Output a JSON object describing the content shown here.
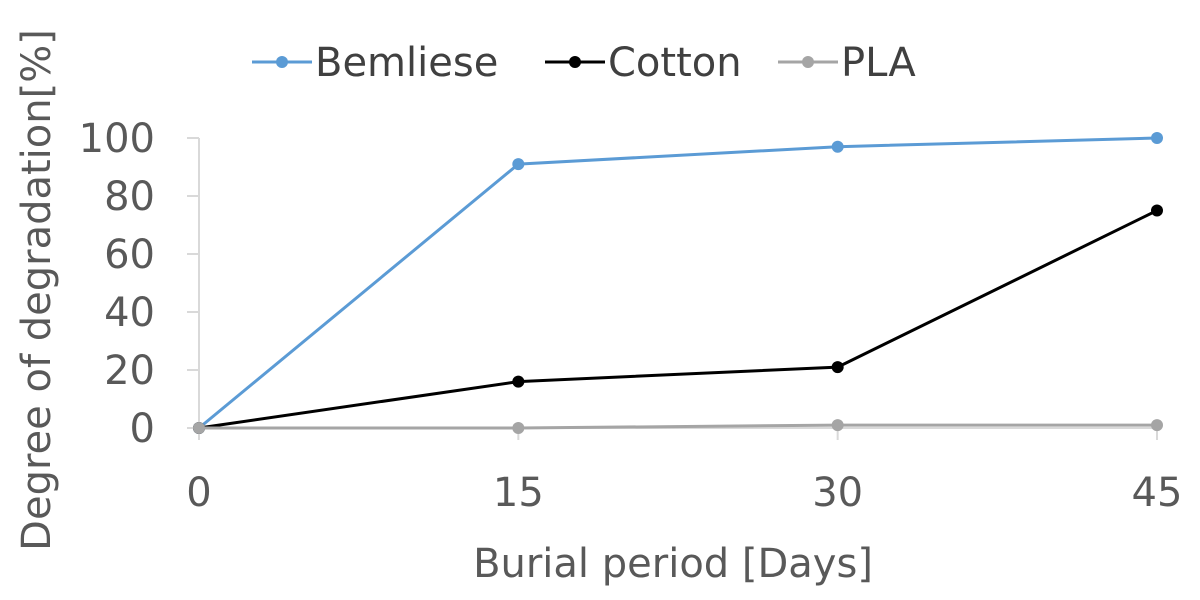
{
  "chart_data": {
    "type": "line",
    "x": [
      0,
      15,
      30,
      45
    ],
    "xlabel": "Burial period [Days]",
    "ylabel": "Degree of degradation[%]",
    "xlim": [
      0,
      45
    ],
    "ylim": [
      0,
      100
    ],
    "x_ticks": [
      "0",
      "15",
      "30",
      "45"
    ],
    "y_ticks": [
      "0",
      "20",
      "40",
      "60",
      "80",
      "100"
    ],
    "grid": false,
    "legend_position": "top",
    "series": [
      {
        "name": "Bemliese",
        "values": [
          0,
          91,
          97,
          100
        ],
        "color": "#5b9bd5"
      },
      {
        "name": "Cotton",
        "values": [
          0,
          16,
          21,
          75
        ],
        "color": "#000000"
      },
      {
        "name": "PLA",
        "values": [
          0,
          0,
          1,
          1
        ],
        "color": "#a5a5a5"
      }
    ]
  }
}
